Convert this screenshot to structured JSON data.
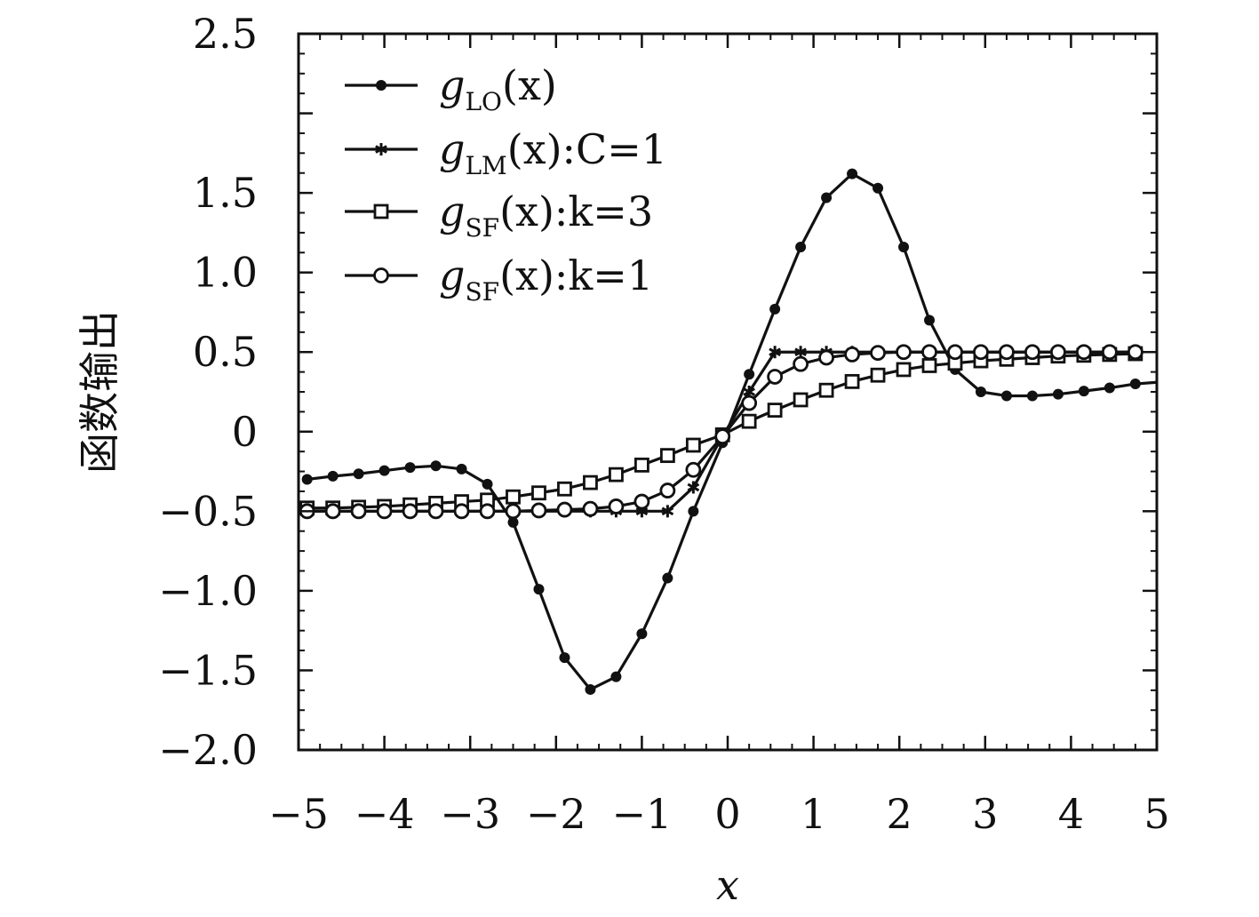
{
  "chart_data": {
    "type": "line",
    "xlabel": "x",
    "ylabel": "函数输出",
    "xlim": [
      -5,
      5
    ],
    "ylim": [
      -2.0,
      2.5
    ],
    "xticks": [
      -5,
      -4,
      -3,
      -2,
      -1,
      0,
      1,
      2,
      3,
      4,
      5
    ],
    "xtick_labels": [
      "−5",
      "−4",
      "−3",
      "−2",
      "−1",
      "0",
      "1",
      "2",
      "3",
      "4",
      "5"
    ],
    "yticks": [
      2.5,
      1.5,
      1.0,
      0.5,
      0,
      -0.5,
      -1.0,
      -1.5,
      -2.0
    ],
    "ytick_labels": [
      "2.5",
      "1.5",
      "1.0",
      "0.5",
      "0",
      "−0.5",
      "−1.0",
      "−1.5",
      "−2.0"
    ],
    "legend_position": "top-left",
    "grid": false,
    "series": [
      {
        "name": "g_LO(x)",
        "legend": {
          "base": "g",
          "sub": "LO",
          "rest": "(x)"
        },
        "marker": "filled-circle",
        "x": [
          -4.9,
          -4.6,
          -4.3,
          -4.0,
          -3.7,
          -3.4,
          -3.1,
          -2.8,
          -2.5,
          -2.2,
          -1.9,
          -1.6,
          -1.3,
          -1.0,
          -0.7,
          -0.4,
          -0.06,
          0.25,
          0.55,
          0.85,
          1.15,
          1.45,
          1.75,
          2.05,
          2.35,
          2.65,
          2.95,
          3.25,
          3.55,
          3.85,
          4.15,
          4.45,
          4.75,
          5.0
        ],
        "y": [
          -0.3,
          -0.28,
          -0.265,
          -0.245,
          -0.225,
          -0.215,
          -0.235,
          -0.33,
          -0.57,
          -0.99,
          -1.42,
          -1.62,
          -1.54,
          -1.27,
          -0.92,
          -0.5,
          -0.07,
          0.36,
          0.77,
          1.16,
          1.47,
          1.62,
          1.53,
          1.16,
          0.7,
          0.39,
          0.25,
          0.225,
          0.225,
          0.235,
          0.255,
          0.275,
          0.3,
          0.31
        ]
      },
      {
        "name": "g_LM(x):C=1",
        "legend": {
          "base": "g",
          "sub": "LM",
          "rest": "(x):C=1"
        },
        "marker": "asterisk",
        "x": [
          -4.9,
          -4.6,
          -4.3,
          -4.0,
          -3.7,
          -3.4,
          -3.1,
          -2.8,
          -2.5,
          -2.2,
          -1.9,
          -1.6,
          -1.3,
          -1.0,
          -0.7,
          -0.4,
          -0.06,
          0.25,
          0.55,
          0.85,
          1.15,
          1.45,
          1.75,
          2.05,
          2.35,
          2.65,
          2.95,
          3.25,
          3.55,
          3.85,
          4.15,
          4.45,
          4.75
        ],
        "y": [
          -0.5,
          -0.5,
          -0.5,
          -0.5,
          -0.5,
          -0.5,
          -0.5,
          -0.5,
          -0.5,
          -0.5,
          -0.5,
          -0.5,
          -0.5,
          -0.5,
          -0.5,
          -0.35,
          -0.03,
          0.25,
          0.5,
          0.5,
          0.5,
          0.5,
          0.5,
          0.5,
          0.5,
          0.5,
          0.5,
          0.5,
          0.5,
          0.5,
          0.5,
          0.5,
          0.5
        ]
      },
      {
        "name": "g_SF(x):k=3",
        "legend": {
          "base": "g",
          "sub": "SF",
          "rest": "(x):k=3"
        },
        "marker": "open-square",
        "x": [
          -4.9,
          -4.6,
          -4.3,
          -4.0,
          -3.7,
          -3.4,
          -3.1,
          -2.8,
          -2.5,
          -2.2,
          -1.9,
          -1.6,
          -1.3,
          -1.0,
          -0.7,
          -0.4,
          -0.06,
          0.25,
          0.55,
          0.85,
          1.15,
          1.45,
          1.75,
          2.05,
          2.35,
          2.65,
          2.95,
          3.25,
          3.55,
          3.85,
          4.15,
          4.45,
          4.75
        ],
        "y": [
          -0.48,
          -0.48,
          -0.475,
          -0.47,
          -0.46,
          -0.45,
          -0.44,
          -0.43,
          -0.41,
          -0.385,
          -0.36,
          -0.32,
          -0.27,
          -0.21,
          -0.15,
          -0.085,
          -0.02,
          0.065,
          0.135,
          0.2,
          0.26,
          0.315,
          0.355,
          0.39,
          0.415,
          0.43,
          0.445,
          0.455,
          0.465,
          0.475,
          0.48,
          0.485,
          0.49
        ]
      },
      {
        "name": "g_SF(x):k=1",
        "legend": {
          "base": "g",
          "sub": "SF",
          "rest": "(x):k=1"
        },
        "marker": "open-circle",
        "x": [
          -4.9,
          -4.6,
          -4.3,
          -4.0,
          -3.7,
          -3.4,
          -3.1,
          -2.8,
          -2.5,
          -2.2,
          -1.9,
          -1.6,
          -1.3,
          -1.0,
          -0.7,
          -0.4,
          -0.06,
          0.25,
          0.55,
          0.85,
          1.15,
          1.45,
          1.75,
          2.05,
          2.35,
          2.65,
          2.95,
          3.25,
          3.55,
          3.85,
          4.15,
          4.45,
          4.75
        ],
        "y": [
          -0.5,
          -0.5,
          -0.5,
          -0.5,
          -0.5,
          -0.5,
          -0.5,
          -0.5,
          -0.5,
          -0.495,
          -0.49,
          -0.485,
          -0.47,
          -0.44,
          -0.37,
          -0.24,
          -0.03,
          0.18,
          0.345,
          0.425,
          0.465,
          0.485,
          0.495,
          0.5,
          0.5,
          0.5,
          0.5,
          0.5,
          0.5,
          0.5,
          0.5,
          0.5,
          0.5
        ]
      }
    ]
  }
}
